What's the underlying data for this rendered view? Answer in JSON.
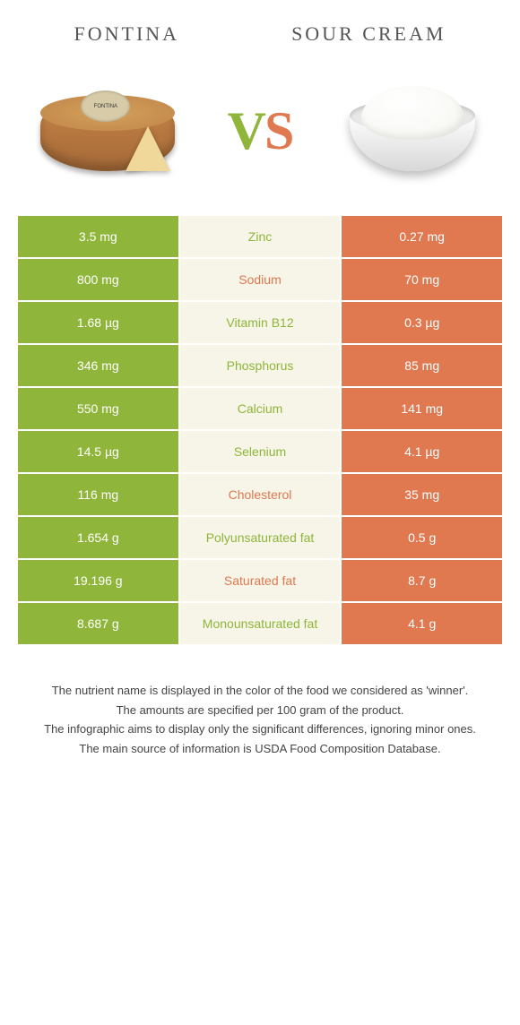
{
  "header": {
    "left_title": "Fontina",
    "right_title": "Sour cream"
  },
  "vs": {
    "v": "V",
    "s": "S"
  },
  "colors": {
    "left_bg": "#8fb53a",
    "right_bg": "#e07850",
    "mid_bg": "#f7f5e8",
    "left_text": "#8fb53a",
    "right_text": "#e07850"
  },
  "table": {
    "type": "comparison-table",
    "rows": [
      {
        "left": "3.5 mg",
        "label": "Zinc",
        "right": "0.27 mg",
        "winner": "left"
      },
      {
        "left": "800 mg",
        "label": "Sodium",
        "right": "70 mg",
        "winner": "right"
      },
      {
        "left": "1.68 µg",
        "label": "Vitamin B12",
        "right": "0.3 µg",
        "winner": "left"
      },
      {
        "left": "346 mg",
        "label": "Phosphorus",
        "right": "85 mg",
        "winner": "left"
      },
      {
        "left": "550 mg",
        "label": "Calcium",
        "right": "141 mg",
        "winner": "left"
      },
      {
        "left": "14.5 µg",
        "label": "Selenium",
        "right": "4.1 µg",
        "winner": "left"
      },
      {
        "left": "116 mg",
        "label": "Cholesterol",
        "right": "35 mg",
        "winner": "right"
      },
      {
        "left": "1.654 g",
        "label": "Polyunsaturated fat",
        "right": "0.5 g",
        "winner": "left"
      },
      {
        "left": "19.196 g",
        "label": "Saturated fat",
        "right": "8.7 g",
        "winner": "right"
      },
      {
        "left": "8.687 g",
        "label": "Monounsaturated fat",
        "right": "4.1 g",
        "winner": "left"
      }
    ]
  },
  "footnotes": [
    "The nutrient name is displayed in the color of the food we considered as 'winner'.",
    "The amounts are specified per 100 gram of the product.",
    "The infographic aims to display only the significant differences, ignoring minor ones.",
    "The main source of information is USDA Food Composition Database."
  ]
}
